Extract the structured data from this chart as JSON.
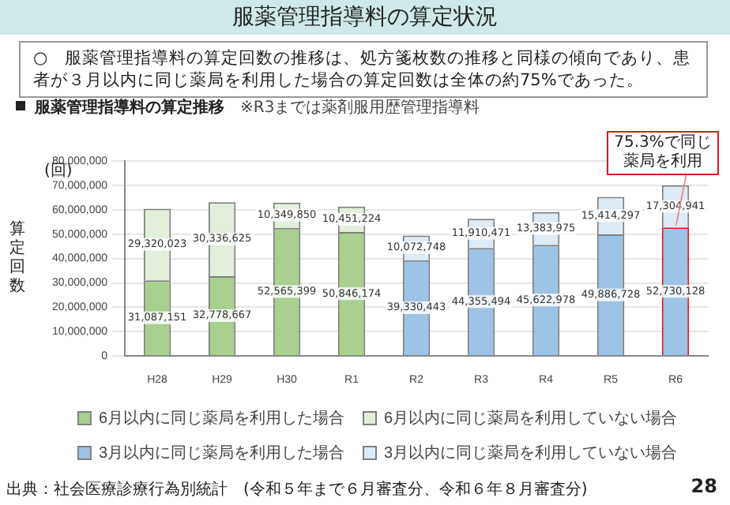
{
  "chart_data": {
    "type": "bar",
    "title": "服薬管理指導料の算定状況",
    "subtitle": "服薬管理指導料の算定推移",
    "ylabel": "算定回数",
    "categories": [
      "H28",
      "H29",
      "H30",
      "R1",
      "R2",
      "R3",
      "R4",
      "R5",
      "R6"
    ],
    "stacked": true,
    "ylim": [
      0,
      80000000
    ],
    "yticks": [
      0,
      {
        "value": 10000000,
        "label": "10,000,000"
      },
      {
        "value": 20000000,
        "label": "20,000,000"
      },
      {
        "value": 30000000,
        "label": "30,000,000"
      },
      {
        "value": 40000000,
        "label": "40,000,000"
      },
      {
        "value": 50000000,
        "label": "50,000,000"
      },
      {
        "value": 60000000,
        "label": "60,000,000"
      },
      {
        "value": 70000000,
        "label": "70,000,000"
      },
      {
        "value": 80000000,
        "label": "80,000,000"
      }
    ],
    "grid": "y",
    "legend": "bottom",
    "series": [
      {
        "name": "6月以内に同じ薬局を利用した場合",
        "color": "#a9d08e",
        "values": [
          31087151,
          32778667,
          52565399,
          50846174,
          null,
          null,
          null,
          null,
          null
        ],
        "value_labels": [
          "31,087,151",
          "32,778,667",
          "52,565,399",
          "50,846,174",
          null,
          null,
          null,
          null,
          null
        ]
      },
      {
        "name": "6月以内に同じ薬局を利用していない場合",
        "color": "#e2efda",
        "values": [
          29320023,
          30336625,
          10349850,
          10451224,
          null,
          null,
          null,
          null,
          null
        ],
        "value_labels": [
          "29,320,023",
          "30,336,625",
          "10,349,850",
          "10,451,224",
          null,
          null,
          null,
          null,
          null
        ]
      },
      {
        "name": "3月以内に同じ薬局を利用した場合",
        "color": "#9dc3e6",
        "values": [
          null,
          null,
          null,
          null,
          39330443,
          44355494,
          45622978,
          49886728,
          52730128
        ],
        "value_labels": [
          null,
          null,
          null,
          null,
          "39,330,443",
          "44,355,494",
          "45,622,978",
          "49,886,728",
          "52,730,128"
        ]
      },
      {
        "name": "3月以内に同じ薬局を利用していない場合",
        "color": "#ddebf7",
        "values": [
          null,
          null,
          null,
          null,
          10072748,
          11910471,
          13383975,
          15414297,
          17304941
        ],
        "value_labels": [
          null,
          null,
          null,
          null,
          "10,072,748",
          "11,910,471",
          "13,383,975",
          "15,414,297",
          "17,304,941"
        ]
      }
    ],
    "annotations": [
      "○　服薬管理指導料の算定回数の推移は、処方箋枚数の推移と同様の傾向であり、患者が３月以内に同じ薬局を利用した場合の算定回数は全体の約75%であった。",
      "※R3までは薬剤服用歴管理指導料",
      "(回)",
      {
        "text": "75.3%で同じ薬局を利用",
        "x": "R6",
        "y": 52730128
      },
      "出典：社会医療診療行為別統計　(令和５年まで６月審査分、令和６年８月審査分)",
      "28"
    ]
  }
}
